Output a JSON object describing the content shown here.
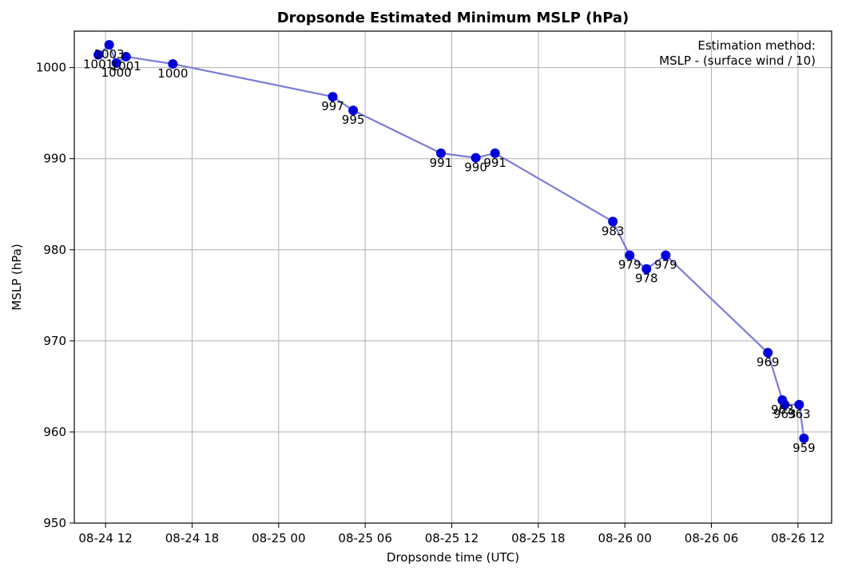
{
  "chart_data": {
    "type": "line",
    "title": "Dropsonde Estimated Minimum MSLP (hPa)",
    "xlabel": "Dropsonde time (UTC)",
    "ylabel": "MSLP (hPa)",
    "xlim": [
      "08-24 09:50",
      "08-26 14:20"
    ],
    "ylim": [
      950,
      1004
    ],
    "x_ticks": [
      "08-24 12",
      "08-24 18",
      "08-25 00",
      "08-25 06",
      "08-25 12",
      "08-25 18",
      "08-26 00",
      "08-26 06",
      "08-26 12"
    ],
    "y_ticks": [
      950,
      960,
      970,
      980,
      990,
      1000
    ],
    "grid": true,
    "line_color": "#7b7bdc",
    "marker_color": "#0000dd",
    "annotation": {
      "line1": "Estimation method:",
      "line2": "MSLP - (surface wind / 10)",
      "position": "top-right"
    },
    "points": [
      {
        "time": "08-24 11:30",
        "value": 1001.4,
        "label": "1001"
      },
      {
        "time": "08-24 12:15",
        "value": 1002.5,
        "label": "1003"
      },
      {
        "time": "08-24 12:45",
        "value": 1000.5,
        "label": "1000"
      },
      {
        "time": "08-24 13:25",
        "value": 1001.2,
        "label": "1001"
      },
      {
        "time": "08-24 16:40",
        "value": 1000.4,
        "label": "1000"
      },
      {
        "time": "08-25 03:45",
        "value": 996.8,
        "label": "997"
      },
      {
        "time": "08-25 05:10",
        "value": 995.3,
        "label": "995"
      },
      {
        "time": "08-25 11:15",
        "value": 990.6,
        "label": "991"
      },
      {
        "time": "08-25 13:40",
        "value": 990.1,
        "label": "990"
      },
      {
        "time": "08-25 15:00",
        "value": 990.6,
        "label": "991"
      },
      {
        "time": "08-25 23:10",
        "value": 983.1,
        "label": "983"
      },
      {
        "time": "08-26 00:20",
        "value": 979.4,
        "label": "979"
      },
      {
        "time": "08-26 01:30",
        "value": 977.9,
        "label": "978"
      },
      {
        "time": "08-26 02:50",
        "value": 979.4,
        "label": "979"
      },
      {
        "time": "08-26 09:55",
        "value": 968.7,
        "label": "969"
      },
      {
        "time": "08-26 10:55",
        "value": 963.5,
        "label": "963"
      },
      {
        "time": "08-26 11:05",
        "value": 963.0,
        "label": "963"
      },
      {
        "time": "08-26 12:05",
        "value": 963.0,
        "label": "963"
      },
      {
        "time": "08-26 12:25",
        "value": 959.3,
        "label": "959"
      }
    ]
  }
}
